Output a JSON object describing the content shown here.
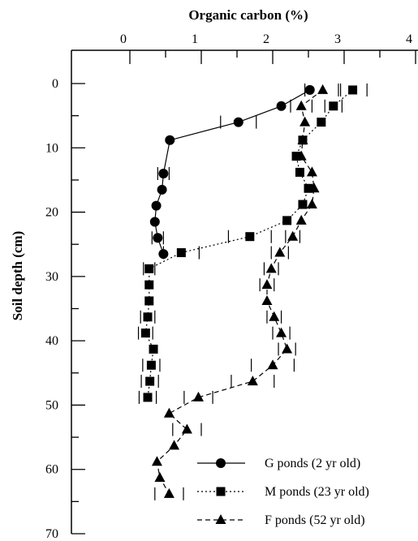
{
  "chart_data": {
    "type": "line",
    "xlabel": "Organic carbon (%)",
    "ylabel": "Soil depth (cm)",
    "xlim": [
      0,
      4
    ],
    "ylim": [
      0,
      70
    ],
    "x_ticks": [
      "0",
      "1",
      "2",
      "3",
      "4"
    ],
    "y_ticks": [
      "0",
      "10",
      "20",
      "30",
      "40",
      "50",
      "60",
      "70"
    ],
    "x_axis_position": "top",
    "y_axis_inverted": true,
    "legend_position": "bottom-right",
    "grid": false,
    "series": [
      {
        "name": "G ponds (2 yr old)",
        "marker": "circle",
        "line": "solid",
        "points": [
          {
            "depth": 1,
            "oc": 2.52,
            "err": null
          },
          {
            "depth": 3.5,
            "oc": 2.12,
            "err": null
          },
          {
            "depth": 6,
            "oc": 1.52,
            "err": 0.25
          },
          {
            "depth": 8.8,
            "oc": 0.56,
            "err": null
          },
          {
            "depth": 14,
            "oc": 0.47,
            "err": 0.08
          },
          {
            "depth": 16.5,
            "oc": 0.45,
            "err": null
          },
          {
            "depth": 19,
            "oc": 0.37,
            "err": null
          },
          {
            "depth": 21.5,
            "oc": 0.35,
            "err": null
          },
          {
            "depth": 24,
            "oc": 0.39,
            "err": 0.08
          },
          {
            "depth": 26.5,
            "oc": 0.47,
            "err": null
          }
        ]
      },
      {
        "name": "M ponds (23 yr old)",
        "marker": "square",
        "line": "dotted",
        "points": [
          {
            "depth": 1,
            "oc": 3.12,
            "err": 0.2
          },
          {
            "depth": 3.5,
            "oc": 2.85,
            "err": 0.12
          },
          {
            "depth": 6,
            "oc": 2.68,
            "err": null
          },
          {
            "depth": 8.8,
            "oc": 2.42,
            "err": null
          },
          {
            "depth": 11.3,
            "oc": 2.33,
            "err": null
          },
          {
            "depth": 13.8,
            "oc": 2.38,
            "err": null
          },
          {
            "depth": 16.3,
            "oc": 2.5,
            "err": null
          },
          {
            "depth": 18.8,
            "oc": 2.42,
            "err": null
          },
          {
            "depth": 21.3,
            "oc": 2.2,
            "err": null
          },
          {
            "depth": 23.8,
            "oc": 1.68,
            "err": 0.3
          },
          {
            "depth": 26.3,
            "oc": 0.72,
            "err": 0.25
          },
          {
            "depth": 28.8,
            "oc": 0.27,
            "err": 0.08
          },
          {
            "depth": 31.3,
            "oc": 0.27,
            "err": null
          },
          {
            "depth": 33.8,
            "oc": 0.27,
            "err": null
          },
          {
            "depth": 36.3,
            "oc": 0.25,
            "err": 0.1
          },
          {
            "depth": 38.8,
            "oc": 0.22,
            "err": 0.1
          },
          {
            "depth": 41.3,
            "oc": 0.33,
            "err": null
          },
          {
            "depth": 43.8,
            "oc": 0.3,
            "err": 0.12
          },
          {
            "depth": 46.3,
            "oc": 0.28,
            "err": 0.12
          },
          {
            "depth": 48.8,
            "oc": 0.25,
            "err": 0.12
          }
        ]
      },
      {
        "name": "F ponds (52 yr old)",
        "marker": "triangle",
        "line": "dashed",
        "points": [
          {
            "depth": 1,
            "oc": 2.7,
            "err": 0.25
          },
          {
            "depth": 3.5,
            "oc": 2.4,
            "err": 0.15
          },
          {
            "depth": 6,
            "oc": 2.45,
            "err": null
          },
          {
            "depth": 8.8,
            "oc": 2.42,
            "err": null
          },
          {
            "depth": 11.3,
            "oc": 2.4,
            "err": null
          },
          {
            "depth": 13.8,
            "oc": 2.55,
            "err": null
          },
          {
            "depth": 16.3,
            "oc": 2.58,
            "err": null
          },
          {
            "depth": 18.8,
            "oc": 2.55,
            "err": null
          },
          {
            "depth": 21.3,
            "oc": 2.4,
            "err": null
          },
          {
            "depth": 23.8,
            "oc": 2.28,
            "err": 0.1
          },
          {
            "depth": 26.3,
            "oc": 2.1,
            "err": 0.12
          },
          {
            "depth": 28.8,
            "oc": 1.98,
            "err": 0.1
          },
          {
            "depth": 31.3,
            "oc": 1.92,
            "err": 0.1
          },
          {
            "depth": 33.8,
            "oc": 1.92,
            "err": null
          },
          {
            "depth": 36.3,
            "oc": 2.02,
            "err": 0.1
          },
          {
            "depth": 38.8,
            "oc": 2.12,
            "err": 0.12
          },
          {
            "depth": 41.3,
            "oc": 2.2,
            "err": 0.12
          },
          {
            "depth": 43.8,
            "oc": 2.0,
            "err": 0.3
          },
          {
            "depth": 46.3,
            "oc": 1.72,
            "err": 0.3
          },
          {
            "depth": 48.8,
            "oc": 0.96,
            "err": 0.2
          },
          {
            "depth": 51.3,
            "oc": 0.55,
            "err": null
          },
          {
            "depth": 53.8,
            "oc": 0.8,
            "err": 0.2
          },
          {
            "depth": 56.3,
            "oc": 0.62,
            "err": null
          },
          {
            "depth": 58.8,
            "oc": 0.38,
            "err": null
          },
          {
            "depth": 61.3,
            "oc": 0.42,
            "err": null
          },
          {
            "depth": 63.8,
            "oc": 0.55,
            "err": 0.2
          }
        ]
      }
    ]
  }
}
